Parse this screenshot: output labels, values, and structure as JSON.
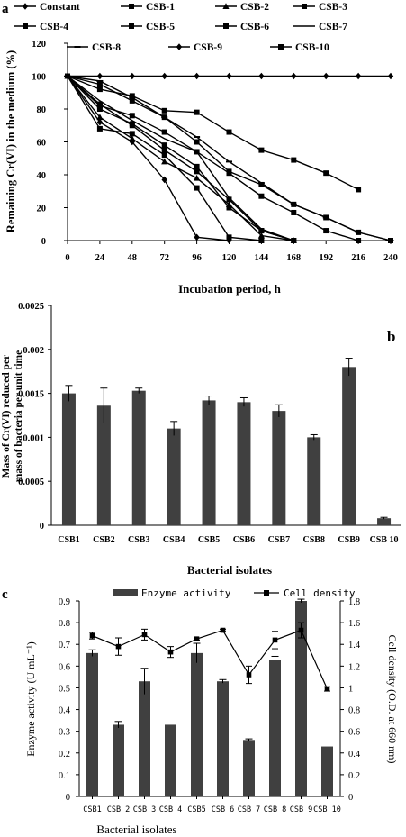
{
  "chart_data": [
    {
      "panel_letter": "a",
      "type": "line",
      "title": "",
      "xlabel": "Incubation period, h",
      "ylabel": "Remaining Cr(VI) in the medium (%)",
      "x": [
        0,
        24,
        48,
        72,
        96,
        120,
        144,
        168,
        192,
        216,
        240
      ],
      "xlim": [
        0,
        240
      ],
      "ylim": [
        0,
        120
      ],
      "yticks": [
        0,
        20,
        40,
        60,
        80,
        100,
        120
      ],
      "legend_placement": "top",
      "series": [
        {
          "name": "Constant",
          "marker": "diamond",
          "points": [
            [
              0,
              100
            ],
            [
              24,
              100
            ],
            [
              48,
              100
            ],
            [
              72,
              100
            ],
            [
              96,
              100
            ],
            [
              120,
              100
            ],
            [
              144,
              100
            ],
            [
              168,
              100
            ],
            [
              192,
              100
            ],
            [
              216,
              100
            ],
            [
              240,
              100
            ]
          ]
        },
        {
          "name": "CSB-1",
          "marker": "square",
          "points": [
            [
              0,
              100
            ],
            [
              24,
              83
            ],
            [
              48,
              70
            ],
            [
              72,
              55
            ],
            [
              96,
              42
            ],
            [
              120,
              25
            ],
            [
              144,
              6
            ],
            [
              168,
              0
            ]
          ]
        },
        {
          "name": "CSB-2",
          "marker": "triangle",
          "points": [
            [
              0,
              100
            ],
            [
              24,
              75
            ],
            [
              48,
              62
            ],
            [
              72,
              48
            ],
            [
              96,
              38
            ],
            [
              120,
              22
            ],
            [
              144,
              3
            ],
            [
              168,
              0
            ]
          ]
        },
        {
          "name": "CSB-3",
          "marker": "square",
          "points": [
            [
              0,
              100
            ],
            [
              24,
              95
            ],
            [
              48,
              85
            ],
            [
              72,
              75
            ],
            [
              96,
              60
            ],
            [
              120,
              42
            ],
            [
              144,
              34
            ],
            [
              168,
              22
            ],
            [
              192,
              14
            ],
            [
              216,
              5
            ],
            [
              240,
              0
            ]
          ]
        },
        {
          "name": "CSB-4",
          "marker": "square",
          "points": [
            [
              0,
              100
            ],
            [
              24,
              92
            ],
            [
              48,
              88
            ],
            [
              72,
              79
            ],
            [
              96,
              78
            ],
            [
              120,
              66
            ],
            [
              144,
              55
            ],
            [
              168,
              49
            ],
            [
              192,
              41
            ],
            [
              216,
              31
            ]
          ]
        },
        {
          "name": "CSB-5",
          "marker": "square",
          "points": [
            [
              0,
              100
            ],
            [
              24,
              68
            ],
            [
              48,
              65
            ],
            [
              72,
              52
            ],
            [
              96,
              32
            ],
            [
              120,
              2
            ],
            [
              144,
              0
            ]
          ]
        },
        {
          "name": "CSB-6",
          "marker": "square",
          "points": [
            [
              0,
              100
            ],
            [
              24,
              82
            ],
            [
              48,
              76
            ],
            [
              72,
              66
            ],
            [
              96,
              54
            ],
            [
              120,
              41
            ],
            [
              144,
              27
            ],
            [
              168,
              17
            ],
            [
              192,
              6
            ],
            [
              216,
              0
            ]
          ]
        },
        {
          "name": "CSB-7",
          "marker": "none",
          "points": [
            [
              0,
              100
            ],
            [
              24,
              85
            ],
            [
              48,
              73
            ],
            [
              72,
              62
            ],
            [
              96,
              54
            ],
            [
              120,
              26
            ],
            [
              144,
              7
            ],
            [
              168,
              0
            ]
          ]
        },
        {
          "name": "CSB-8",
          "marker": "dash",
          "points": [
            [
              0,
              100
            ],
            [
              24,
              97
            ],
            [
              48,
              87
            ],
            [
              72,
              75
            ],
            [
              96,
              63
            ],
            [
              120,
              48
            ],
            [
              144,
              35
            ],
            [
              168,
              22
            ],
            [
              192,
              14
            ],
            [
              216,
              5
            ],
            [
              240,
              0
            ]
          ]
        },
        {
          "name": "CSB-9",
          "marker": "diamond",
          "points": [
            [
              0,
              100
            ],
            [
              24,
              72
            ],
            [
              48,
              60
            ],
            [
              72,
              37
            ],
            [
              96,
              2
            ],
            [
              120,
              0
            ]
          ]
        },
        {
          "name": "CSB-10",
          "marker": "square",
          "points": [
            [
              0,
              100
            ],
            [
              24,
              80
            ],
            [
              48,
              71
            ],
            [
              72,
              58
            ],
            [
              96,
              45
            ],
            [
              120,
              20
            ],
            [
              144,
              6
            ],
            [
              168,
              0
            ]
          ]
        }
      ]
    },
    {
      "panel_letter": "b",
      "type": "bar",
      "title": "",
      "xlabel": "Bacterial isolates",
      "ylabel": "Mass of Cr(VI) reduced per mass of bacteria per unit time",
      "categories": [
        "CSB1",
        "CSB2",
        "CSB3",
        "CSB4",
        "CSB5",
        "CSB6",
        "CSB7",
        "CSB8",
        "CSB9",
        "CSB 10"
      ],
      "values": [
        0.0015,
        0.00136,
        0.00153,
        0.0011,
        0.00142,
        0.0014,
        0.0013,
        0.001,
        0.0018,
        8e-05
      ],
      "errors": [
        9e-05,
        0.0002,
        3e-05,
        8e-05,
        5e-05,
        5e-05,
        7e-05,
        3e-05,
        0.0001,
        1e-05
      ],
      "ylim": [
        0,
        0.0025
      ],
      "yticks": [
        0,
        0.0005,
        0.001,
        0.0015,
        0.002,
        0.0025
      ],
      "ytick_labels": [
        "0",
        "0.0005",
        "0.001",
        "0.0015",
        "0.002",
        "0.0025"
      ]
    },
    {
      "panel_letter": "c",
      "type": "bar",
      "title": "",
      "xlabel": "Bacterial isolates",
      "ylabel": "Enzyme activity (U mL⁻¹)",
      "ylabel_right": "Cell density (O.D. at 660 nm)",
      "categories": [
        "CSB1",
        "CSB 2",
        "CSB 3",
        "CSB 4",
        "CSB5",
        "CSB 6",
        "CSB 7",
        "CSB 8",
        "CSB 9",
        "CSB 10"
      ],
      "legend_placement": "top",
      "series": [
        {
          "name": "Enzyme activity",
          "type": "bar",
          "axis": "left",
          "values": [
            0.66,
            0.33,
            0.53,
            0.33,
            0.66,
            0.53,
            0.26,
            0.63,
            0.9,
            0.23
          ],
          "errors": [
            0.015,
            0.015,
            0.06,
            0.0,
            0.045,
            0.008,
            0.005,
            0.015,
            0.008,
            0.0
          ]
        },
        {
          "name": "Cell density",
          "type": "line",
          "axis": "right",
          "values": [
            1.48,
            1.38,
            1.49,
            1.33,
            1.45,
            1.53,
            1.12,
            1.44,
            1.53,
            0.99
          ],
          "errors": [
            0.03,
            0.08,
            0.05,
            0.05,
            0.01,
            0.01,
            0.08,
            0.08,
            0.07,
            0.02
          ]
        }
      ],
      "ylim": [
        0,
        0.9
      ],
      "yticks": [
        0,
        0.1,
        0.2,
        0.3,
        0.4,
        0.5,
        0.6,
        0.7,
        0.8,
        0.9
      ],
      "ytick_labels": [
        "0",
        "0.1",
        "0.2",
        "0.3",
        "0.4",
        "0.5",
        "0.6",
        "0.7",
        "0.8",
        "0.9"
      ],
      "ylim_right": [
        0,
        1.8
      ],
      "yticks_right": [
        0,
        0.2,
        0.4,
        0.6,
        0.8,
        1,
        1.2,
        1.4,
        1.6,
        1.8
      ],
      "ytick_labels_right": [
        "0",
        "0.2",
        "0.4",
        "0.6",
        "0.8",
        "1",
        "1.2",
        "1.4",
        "1.6",
        "1.8"
      ]
    }
  ]
}
